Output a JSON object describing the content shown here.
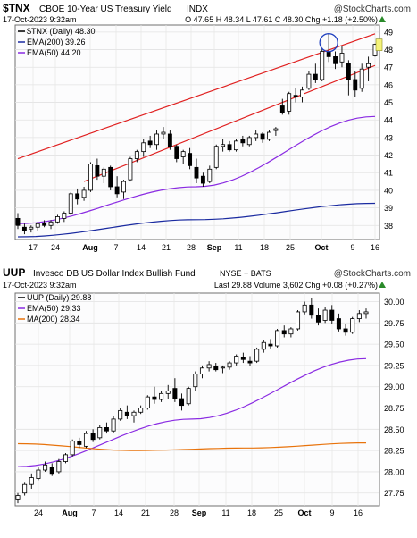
{
  "panels": [
    {
      "symbol": "$TNX",
      "description": "CBOE 10-Year US Treasury Yield",
      "exchange": "INDX",
      "brand": "@StockCharts.com",
      "datetime": "17-Oct-2023 9:32am",
      "ohlc_text": "O 47.65  H 48.34  L 47.61  C 48.30  Chg +1.18 (+2.50%)",
      "chg_up_icon": "triangle-up-icon",
      "legend": [
        {
          "text": "$TNX (Daily) 48.30",
          "color": "#000000"
        },
        {
          "text": "EMA(200) 39.26",
          "color": "#1a2aa0"
        },
        {
          "text": "EMA(50) 44.20",
          "color": "#8a2be2"
        }
      ]
    },
    {
      "symbol": "UUP",
      "description": "Invesco DB US Dollar Index Bullish Fund",
      "exchange": "NYSE + BATS",
      "brand": "@StockCharts.com",
      "datetime": "17-Oct-2023 9:32am",
      "ohlc_text": "Last 29.88  Volume 3,602  Chg +0.08 (+0.27%)",
      "chg_up_icon": "triangle-up-icon",
      "legend": [
        {
          "text": "UUP (Daily) 29.88",
          "color": "#000000"
        },
        {
          "text": "EMA(50) 29.33",
          "color": "#8a2be2"
        },
        {
          "text": "MA(200) 28.34",
          "color": "#e8730c"
        }
      ]
    }
  ],
  "chart_data": [
    {
      "type": "candlestick",
      "title": "$TNX CBOE 10-Year US Treasury Yield INDX",
      "x_tick_labels": [
        "17",
        "24",
        "Aug",
        "7",
        "14",
        "21",
        "28",
        "Sep",
        "11",
        "18",
        "25",
        "Oct",
        "9",
        "16"
      ],
      "y_tick_labels": [
        "38",
        "39",
        "40",
        "41",
        "42",
        "43",
        "44",
        "45",
        "46",
        "47",
        "48",
        "49"
      ],
      "ylim": [
        37.2,
        49.4
      ],
      "grid": true,
      "series": [
        {
          "name": "$TNX (Daily)",
          "values": [
            [
              38.4,
              38.7,
              37.8,
              38.0
            ],
            [
              37.9,
              38.1,
              37.5,
              37.7
            ],
            [
              37.8,
              38.0,
              37.6,
              37.9
            ],
            [
              37.9,
              38.2,
              37.7,
              38.1
            ],
            [
              38.1,
              38.3,
              37.9,
              38.0
            ],
            [
              38.0,
              38.3,
              37.8,
              38.2
            ],
            [
              38.2,
              38.6,
              38.1,
              38.5
            ],
            [
              38.4,
              38.8,
              38.2,
              38.7
            ],
            [
              38.7,
              39.9,
              38.6,
              39.8
            ],
            [
              39.8,
              40.1,
              39.2,
              39.5
            ],
            [
              39.6,
              40.2,
              39.4,
              40.0
            ],
            [
              40.0,
              41.6,
              39.9,
              41.5
            ],
            [
              41.4,
              41.8,
              40.6,
              40.8
            ],
            [
              40.8,
              41.3,
              40.4,
              41.2
            ],
            [
              41.3,
              41.4,
              40.0,
              40.2
            ],
            [
              40.2,
              40.8,
              39.6,
              39.8
            ],
            [
              39.9,
              40.6,
              39.5,
              40.5
            ],
            [
              40.6,
              41.9,
              40.5,
              41.8
            ],
            [
              41.8,
              42.3,
              41.6,
              42.2
            ],
            [
              42.2,
              42.9,
              41.9,
              42.7
            ],
            [
              42.8,
              43.1,
              42.4,
              42.6
            ],
            [
              42.6,
              43.4,
              42.3,
              43.2
            ],
            [
              43.2,
              43.6,
              42.9,
              43.3
            ],
            [
              43.2,
              43.4,
              42.3,
              42.5
            ],
            [
              42.5,
              42.6,
              41.6,
              41.8
            ],
            [
              41.9,
              42.3,
              41.5,
              42.2
            ],
            [
              42.1,
              42.4,
              41.2,
              41.4
            ],
            [
              41.3,
              41.8,
              40.4,
              40.7
            ],
            [
              40.8,
              41.0,
              40.2,
              40.4
            ],
            [
              40.5,
              41.4,
              40.4,
              41.2
            ],
            [
              41.3,
              42.6,
              41.2,
              42.5
            ],
            [
              42.5,
              42.9,
              42.2,
              42.6
            ],
            [
              42.6,
              42.8,
              42.2,
              42.3
            ],
            [
              42.3,
              42.9,
              42.2,
              42.8
            ],
            [
              42.9,
              43.1,
              42.5,
              42.7
            ],
            [
              42.6,
              43.1,
              42.5,
              43.0
            ],
            [
              43.0,
              43.4,
              42.8,
              43.2
            ],
            [
              43.2,
              43.3,
              42.7,
              42.9
            ],
            [
              42.9,
              43.4,
              42.8,
              43.3
            ],
            [
              43.4,
              43.6,
              43.1,
              43.5
            ],
            [
              44.8,
              45.2,
              44.3,
              44.4
            ],
            [
              44.5,
              45.6,
              44.3,
              45.5
            ],
            [
              45.4,
              45.8,
              45.0,
              45.3
            ],
            [
              45.3,
              45.9,
              45.0,
              45.7
            ],
            [
              45.8,
              46.8,
              45.7,
              46.6
            ],
            [
              46.6,
              47.2,
              46.1,
              46.3
            ],
            [
              46.3,
              48.1,
              46.2,
              47.9
            ],
            [
              47.9,
              48.9,
              47.3,
              47.6
            ],
            [
              47.6,
              47.9,
              46.9,
              47.2
            ],
            [
              47.3,
              48.2,
              47.0,
              47.8
            ],
            [
              47.2,
              47.4,
              45.4,
              46.3
            ],
            [
              46.3,
              46.8,
              45.3,
              45.7
            ],
            [
              45.8,
              47.2,
              45.6,
              46.9
            ],
            [
              47.0,
              47.6,
              46.2,
              47.2
            ],
            [
              47.65,
              48.34,
              47.61,
              48.3
            ]
          ]
        },
        {
          "name": "EMA(200)",
          "values": [
            37.35,
            38.33,
            39.26
          ]
        },
        {
          "name": "EMA(50)",
          "values": [
            38.1,
            40.2,
            44.2
          ]
        }
      ],
      "trendlines": [
        {
          "name": "upper-channel",
          "from": [
            38.0,
            41.8
          ],
          "to": [
            48.8,
            48.9
          ]
        },
        {
          "name": "lower-channel",
          "from": [
            40.0,
            40.5
          ],
          "to": [
            48.8,
            47.1
          ]
        }
      ],
      "last_value_label": "48",
      "annotation": "circle around the October high"
    },
    {
      "type": "candlestick",
      "title": "UUP Invesco DB US Dollar Index Bullish Fund NYSE + BATS",
      "x_tick_labels": [
        "24",
        "Aug",
        "7",
        "14",
        "21",
        "28",
        "Sep",
        "11",
        "18",
        "25",
        "Oct",
        "9",
        "16"
      ],
      "y_tick_labels": [
        "27.75",
        "28.00",
        "28.25",
        "28.50",
        "28.75",
        "29.00",
        "29.25",
        "29.50",
        "29.75",
        "30.00"
      ],
      "ylim": [
        27.6,
        30.1
      ],
      "grid": true,
      "series": [
        {
          "name": "UUP (Daily)",
          "values": [
            [
              27.68,
              27.75,
              27.63,
              27.72
            ],
            [
              27.75,
              27.88,
              27.72,
              27.85
            ],
            [
              27.85,
              27.98,
              27.8,
              27.93
            ],
            [
              27.92,
              28.05,
              27.9,
              28.02
            ],
            [
              28.02,
              28.12,
              28.0,
              28.08
            ],
            [
              28.05,
              28.1,
              27.95,
              27.98
            ],
            [
              28.0,
              28.15,
              27.98,
              28.12
            ],
            [
              28.12,
              28.22,
              28.1,
              28.2
            ],
            [
              28.2,
              28.38,
              28.18,
              28.36
            ],
            [
              28.36,
              28.4,
              28.28,
              28.32
            ],
            [
              28.3,
              28.48,
              28.28,
              28.45
            ],
            [
              28.45,
              28.5,
              28.35,
              28.38
            ],
            [
              28.4,
              28.55,
              28.38,
              28.52
            ],
            [
              28.52,
              28.58,
              28.45,
              28.48
            ],
            [
              28.48,
              28.66,
              28.46,
              28.62
            ],
            [
              28.62,
              28.75,
              28.6,
              28.72
            ],
            [
              28.7,
              28.78,
              28.62,
              28.66
            ],
            [
              28.66,
              28.72,
              28.58,
              28.7
            ],
            [
              28.7,
              28.78,
              28.68,
              28.75
            ],
            [
              28.75,
              28.9,
              28.73,
              28.88
            ],
            [
              28.88,
              29.0,
              28.8,
              28.85
            ],
            [
              28.85,
              28.95,
              28.82,
              28.92
            ],
            [
              28.92,
              29.02,
              28.85,
              28.95
            ],
            [
              28.98,
              29.1,
              28.82,
              28.86
            ],
            [
              28.86,
              28.92,
              28.72,
              28.78
            ],
            [
              28.8,
              29.0,
              28.78,
              28.98
            ],
            [
              29.0,
              29.18,
              28.95,
              29.15
            ],
            [
              29.15,
              29.25,
              29.1,
              29.22
            ],
            [
              29.22,
              29.3,
              29.18,
              29.26
            ],
            [
              29.24,
              29.28,
              29.18,
              29.2
            ],
            [
              29.22,
              29.25,
              29.16,
              29.23
            ],
            [
              29.23,
              29.3,
              29.2,
              29.28
            ],
            [
              29.28,
              29.38,
              29.25,
              29.36
            ],
            [
              29.35,
              29.4,
              29.28,
              29.32
            ],
            [
              29.3,
              29.36,
              29.24,
              29.28
            ],
            [
              29.3,
              29.46,
              29.28,
              29.44
            ],
            [
              29.44,
              29.55,
              29.4,
              29.52
            ],
            [
              29.5,
              29.56,
              29.45,
              29.48
            ],
            [
              29.48,
              29.68,
              29.46,
              29.66
            ],
            [
              29.66,
              29.72,
              29.58,
              29.62
            ],
            [
              29.62,
              29.7,
              29.58,
              29.68
            ],
            [
              29.68,
              29.9,
              29.66,
              29.88
            ],
            [
              29.88,
              30.0,
              29.85,
              29.96
            ],
            [
              29.96,
              30.04,
              29.8,
              29.84
            ],
            [
              29.84,
              29.92,
              29.72,
              29.76
            ],
            [
              29.78,
              29.94,
              29.75,
              29.9
            ],
            [
              29.9,
              29.96,
              29.74,
              29.78
            ],
            [
              29.8,
              29.86,
              29.65,
              29.68
            ],
            [
              29.68,
              29.74,
              29.6,
              29.64
            ],
            [
              29.64,
              29.82,
              29.62,
              29.8
            ],
            [
              29.8,
              29.9,
              29.76,
              29.86
            ],
            [
              29.86,
              29.92,
              29.8,
              29.88
            ]
          ]
        },
        {
          "name": "EMA(50)",
          "values": [
            28.06,
            28.62,
            29.33
          ]
        },
        {
          "name": "MA(200)",
          "values": [
            28.33,
            28.25,
            28.28,
            28.34
          ]
        }
      ]
    }
  ]
}
